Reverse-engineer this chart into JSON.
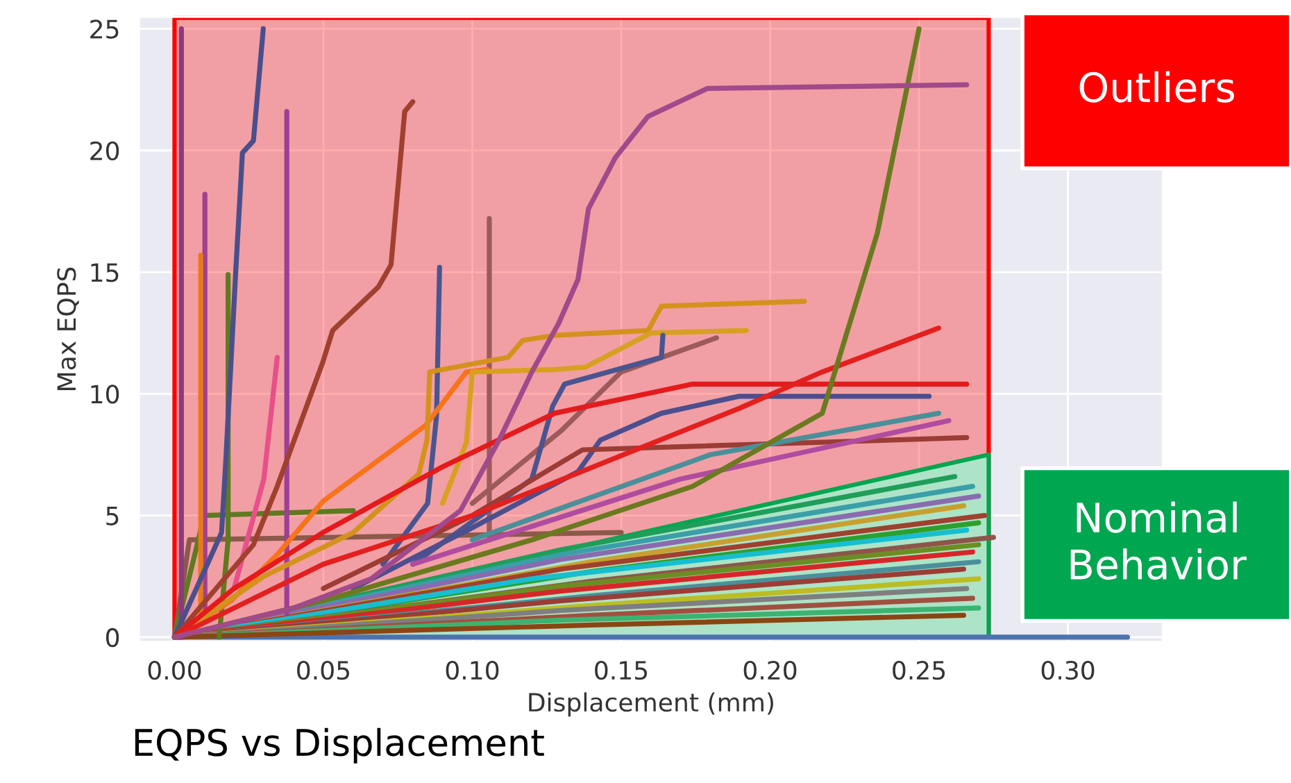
{
  "chart_data": {
    "type": "line",
    "xlabel": "Displacement (mm)",
    "ylabel": "Max EQPS",
    "annotations": [
      "EQPS vs Displacement"
    ],
    "xlim": [
      -0.012,
      0.332
    ],
    "ylim": [
      -0.2,
      25.5
    ],
    "xticks": [
      {
        "value": 0,
        "label": "0.00"
      },
      {
        "value": 0.05,
        "label": "0.05"
      },
      {
        "value": 0.1,
        "label": "0.10"
      },
      {
        "value": 0.15,
        "label": "0.15"
      },
      {
        "value": 0.2,
        "label": "0.20"
      },
      {
        "value": 0.25,
        "label": "0.25"
      },
      {
        "value": 0.3,
        "label": "0.30"
      }
    ],
    "yticks": [
      0,
      5,
      10,
      15,
      20,
      25
    ],
    "grid": true,
    "series": [
      {
        "type": "area",
        "name": "Outliers",
        "color": "#ff0000",
        "x": [
          0,
          0.2734
        ],
        "values": [
          25.45,
          25.45
        ]
      },
      {
        "type": "area",
        "name": "Nominal Behavior",
        "color": "#00a650",
        "x": [
          0,
          0.2734
        ],
        "values": [
          0,
          7.5
        ]
      },
      {
        "color": "#4c72b0",
        "x": [
          0,
          0.32
        ],
        "values": [
          0,
          0
        ]
      },
      {
        "color": "#1f9e5a",
        "x": [
          0,
          0.13,
          0.262
        ],
        "values": [
          0,
          3.6,
          6.6
        ]
      },
      {
        "color": "#3a9fa8",
        "x": [
          0,
          0.13,
          0.268
        ],
        "values": [
          0,
          3.4,
          6.2
        ]
      },
      {
        "color": "#8a6bb0",
        "x": [
          0,
          0.13,
          0.27
        ],
        "values": [
          0,
          3.2,
          5.8
        ]
      },
      {
        "color": "#c8a030",
        "x": [
          0,
          0.14,
          0.265
        ],
        "values": [
          0,
          3.1,
          5.4
        ]
      },
      {
        "color": "#a0402f",
        "x": [
          0,
          0.13,
          0.272
        ],
        "values": [
          0,
          2.8,
          5.0
        ]
      },
      {
        "color": "#2ca02c",
        "x": [
          0,
          0.14,
          0.27
        ],
        "values": [
          0,
          2.7,
          4.7
        ]
      },
      {
        "color": "#17becf",
        "x": [
          0,
          0.12,
          0.266
        ],
        "values": [
          0,
          2.4,
          4.4
        ]
      },
      {
        "color": "#8c564b",
        "x": [
          0,
          0.14,
          0.275
        ],
        "values": [
          0,
          2.3,
          4.1
        ]
      },
      {
        "color": "#6b8e23",
        "x": [
          0,
          0.13,
          0.27
        ],
        "values": [
          0,
          2.1,
          3.8
        ]
      },
      {
        "color": "#d62728",
        "x": [
          0,
          0.13,
          0.268
        ],
        "values": [
          0,
          1.9,
          3.5
        ]
      },
      {
        "color": "#4a8f9a",
        "x": [
          0,
          0.14,
          0.27
        ],
        "values": [
          0,
          1.7,
          3.1
        ]
      },
      {
        "color": "#9b3d35",
        "x": [
          0,
          0.13,
          0.265
        ],
        "values": [
          0,
          1.5,
          2.8
        ]
      },
      {
        "color": "#bcbd22",
        "x": [
          0,
          0.14,
          0.27
        ],
        "values": [
          0,
          1.3,
          2.4
        ]
      },
      {
        "color": "#7f7f7f",
        "x": [
          0,
          0.13,
          0.266
        ],
        "values": [
          0,
          1.1,
          2.0
        ]
      },
      {
        "color": "#a05040",
        "x": [
          0,
          0.14,
          0.268
        ],
        "values": [
          0,
          0.9,
          1.6
        ]
      },
      {
        "color": "#3cb371",
        "x": [
          0,
          0.13,
          0.27
        ],
        "values": [
          0,
          0.7,
          1.2
        ]
      },
      {
        "color": "#8b4513",
        "x": [
          0,
          0.14,
          0.265
        ],
        "values": [
          0,
          0.5,
          0.9
        ]
      },
      {
        "color": "#8b5a4a",
        "x": [
          0,
          0.005,
          0.15
        ],
        "values": [
          0,
          4.0,
          4.3
        ]
      },
      {
        "color": "#5f7a1f",
        "x": [
          0,
          0.01,
          0.06
        ],
        "values": [
          0,
          5.0,
          5.2
        ]
      },
      {
        "color": "#8b3a80",
        "x": [
          0.0023,
          0.0023
        ],
        "values": [
          0,
          25
        ]
      },
      {
        "color": "#a0408f",
        "x": [
          0.0102,
          0.0102
        ],
        "values": [
          1,
          18.2
        ]
      },
      {
        "color": "#e87a1c",
        "x": [
          0.0088,
          0.0088
        ],
        "values": [
          1,
          15.7
        ]
      },
      {
        "color": "#5f7a1f",
        "x": [
          0.015,
          0.018,
          0.018
        ],
        "values": [
          0,
          4,
          14.9
        ]
      },
      {
        "color": "#9e3f96",
        "x": [
          0.0377,
          0.0377
        ],
        "values": [
          1,
          21.6
        ]
      },
      {
        "color": "#e8508a",
        "x": [
          0.02,
          0.03,
          0.0345
        ],
        "values": [
          2,
          6.5,
          11.5
        ]
      },
      {
        "color": "#4a4f8c",
        "x": [
          0,
          0.0158,
          0.0172,
          0.0205,
          0.0228,
          0.0265,
          0.0298
        ],
        "values": [
          0,
          4.3,
          7.2,
          14.9,
          19.9,
          20.4,
          25
        ]
      },
      {
        "color": "#a0402f",
        "x": [
          0,
          0.0265,
          0.0345,
          0.0498,
          0.0531,
          0.0685,
          0.0727,
          0.0773,
          0.08
        ],
        "values": [
          0,
          3.8,
          6.2,
          11.3,
          12.6,
          14.4,
          15.3,
          21.6,
          22.0
        ]
      },
      {
        "color": "#4a5590",
        "x": [
          0.07,
          0.085,
          0.088,
          0.089
        ],
        "values": [
          3,
          5.5,
          9.1,
          15.2
        ]
      },
      {
        "color": "#9c5a5a",
        "x": [
          0.1057,
          0.1057
        ],
        "values": [
          4,
          17.2
        ]
      },
      {
        "color": "#f8731a",
        "x": [
          0,
          0.019,
          0.0345,
          0.05,
          0.0843,
          0.098,
          0.105
        ],
        "values": [
          0,
          1.5,
          3.4,
          5.6,
          8.7,
          10.9,
          11.0
        ]
      },
      {
        "color": "#d4921c",
        "x": [
          0,
          0.03,
          0.06,
          0.082,
          0.0848,
          0.0857,
          0.112,
          0.117,
          0.1276,
          0.159,
          0.1635,
          0.2115
        ],
        "values": [
          0,
          2.5,
          4.3,
          6.7,
          8.1,
          10.9,
          11.5,
          12.2,
          12.4,
          12.6,
          13.6,
          13.8
        ]
      },
      {
        "color": "#d8a020",
        "x": [
          0.09,
          0.098,
          0.1,
          0.1276,
          0.138,
          0.16,
          0.192
        ],
        "values": [
          5.5,
          8,
          10.9,
          11.0,
          11.1,
          12.5,
          12.6
        ]
      },
      {
        "color": "#9c5a5a",
        "x": [
          0.1,
          0.13,
          0.15,
          0.182
        ],
        "values": [
          5.5,
          8.5,
          10.9,
          12.3
        ]
      },
      {
        "color": "#4a5590",
        "x": [
          0.08,
          0.12,
          0.127,
          0.131,
          0.1635,
          0.164
        ],
        "values": [
          3,
          6.5,
          9.5,
          10.4,
          11.5,
          12.4
        ]
      },
      {
        "color": "#4c4e8f",
        "x": [
          0.06,
          0.1,
          0.1355,
          0.143,
          0.1635,
          0.1896,
          0.2534
        ],
        "values": [
          2,
          4.5,
          6.8,
          8.1,
          9.2,
          9.9,
          9.9
        ]
      },
      {
        "color": "#9b3d35",
        "x": [
          0.05,
          0.1,
          0.137,
          0.266
        ],
        "values": [
          2,
          5,
          7.7,
          8.2
        ]
      },
      {
        "color": "#4a8f9a",
        "x": [
          0.1,
          0.18,
          0.2566
        ],
        "values": [
          4,
          7.5,
          9.2
        ]
      },
      {
        "color": "#b04ca0",
        "x": [
          0.08,
          0.17,
          0.26
        ],
        "values": [
          3,
          6.5,
          8.9
        ]
      },
      {
        "color": "#e41a1c",
        "x": [
          0,
          0.02,
          0.0498,
          0.09,
          0.1276,
          0.174,
          0.266
        ],
        "values": [
          0,
          2.0,
          4.3,
          7.0,
          9.2,
          10.4,
          10.4
        ]
      },
      {
        "color": "#e3201f",
        "x": [
          0,
          0.05,
          0.1,
          0.159,
          0.1896,
          0.2175,
          0.2566
        ],
        "values": [
          0,
          3.0,
          5.0,
          7.9,
          9.4,
          10.9,
          12.7
        ]
      },
      {
        "color": "#6b7a1f",
        "x": [
          0,
          0.05,
          0.12,
          0.174,
          0.2175,
          0.236,
          0.25
        ],
        "values": [
          0,
          1.5,
          4.0,
          6.2,
          9.2,
          16.6,
          25
        ]
      },
      {
        "color": "#a04a8c",
        "x": [
          0,
          0.04,
          0.066,
          0.096,
          0.109,
          0.12,
          0.129,
          0.1355,
          0.139,
          0.148,
          0.159,
          0.179,
          0.266
        ],
        "values": [
          0,
          1.2,
          2.4,
          5.2,
          8.1,
          10.9,
          12.9,
          14.7,
          17.6,
          19.7,
          21.4,
          22.55,
          22.7
        ]
      }
    ]
  }
}
